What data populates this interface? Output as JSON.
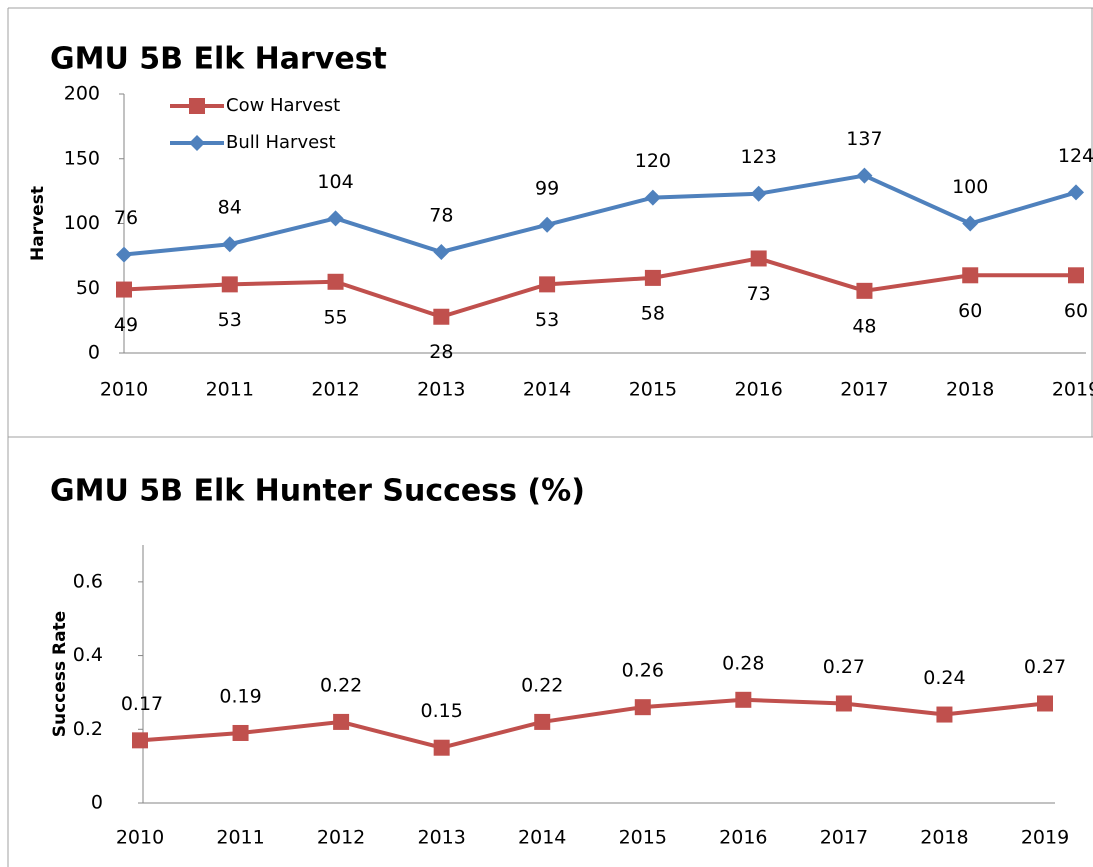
{
  "chart_data": [
    {
      "type": "line",
      "title": "GMU 5B Elk Harvest",
      "y_label": "Harvest",
      "categories": [
        "2010",
        "2011",
        "2012",
        "2013",
        "2014",
        "2015",
        "2016",
        "2017",
        "2018",
        "2019"
      ],
      "series": [
        {
          "name": "Cow Harvest",
          "color": "#c0504d",
          "marker": "square",
          "values": [
            49,
            53,
            55,
            28,
            53,
            58,
            73,
            48,
            60,
            60
          ]
        },
        {
          "name": "Bull Harvest",
          "color": "#4f81bd",
          "marker": "diamond",
          "values": [
            76,
            84,
            104,
            78,
            99,
            120,
            123,
            137,
            100,
            124
          ]
        }
      ],
      "ylim": [
        0,
        200
      ],
      "yticks": [
        0,
        50,
        100,
        150,
        200
      ],
      "legend": "upper left",
      "data_labels": true
    },
    {
      "type": "line",
      "title": "GMU 5B Elk Hunter Success (%)",
      "y_label": "Success Rate",
      "categories": [
        "2010",
        "2011",
        "2012",
        "2013",
        "2014",
        "2015",
        "2016",
        "2017",
        "2018",
        "2019"
      ],
      "series": [
        {
          "color": "#c0504d",
          "marker": "square",
          "values": [
            0.17,
            0.19,
            0.22,
            0.15,
            0.22,
            0.26,
            0.28,
            0.27,
            0.24,
            0.27
          ]
        }
      ],
      "ylim": [
        0,
        0.7
      ],
      "yticks": [
        0,
        0.2,
        0.4,
        0.6
      ],
      "data_labels": true
    }
  ]
}
